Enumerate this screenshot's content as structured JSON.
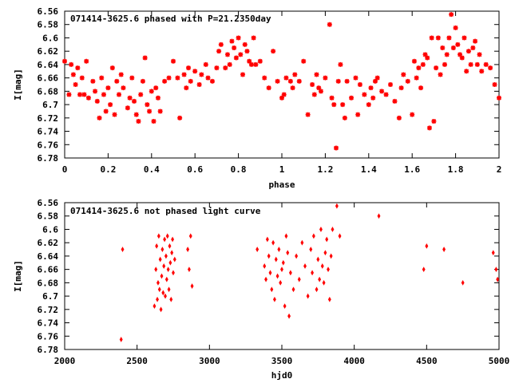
{
  "chart_data": [
    {
      "type": "scatter",
      "title": "071414-3625.6 phased with P=21.2350day",
      "xlabel": "phase",
      "ylabel": "I[mag]",
      "xlim": [
        0,
        2
      ],
      "ylim": [
        6.56,
        6.78
      ],
      "y_inverted": true,
      "xticks": [
        0,
        0.2,
        0.4,
        0.6,
        0.8,
        1,
        1.2,
        1.4,
        1.6,
        1.8,
        2
      ],
      "xtick_labels": [
        "0",
        "0.2",
        "0.4",
        "0.6",
        "0.8",
        "1",
        "1.2",
        "1.4",
        "1.6",
        "1.8",
        "2"
      ],
      "yticks": [
        6.56,
        6.58,
        6.6,
        6.62,
        6.64,
        6.66,
        6.68,
        6.7,
        6.72,
        6.74,
        6.76,
        6.78
      ],
      "ytick_labels": [
        "6.56",
        "6.58",
        "6.6",
        "6.62",
        "6.64",
        "6.66",
        "6.68",
        "6.7",
        "6.72",
        "6.74",
        "6.76",
        "6.78"
      ],
      "marker": "star",
      "color": "#ff0000",
      "series": [
        {
          "x": [
            0.0,
            0.02,
            0.03,
            0.04,
            0.05,
            0.06,
            0.07,
            0.08,
            0.09,
            0.1,
            0.11,
            0.13,
            0.14,
            0.15,
            0.16,
            0.17,
            0.18,
            0.19,
            0.2,
            0.21,
            0.22,
            0.23,
            0.24,
            0.25,
            0.26,
            0.27,
            0.29,
            0.3,
            0.31,
            0.32,
            0.33,
            0.34,
            0.35,
            0.36,
            0.37,
            0.38,
            0.39,
            0.4,
            0.41,
            0.42,
            0.43,
            0.44,
            0.46,
            0.48,
            0.5,
            0.52,
            0.53,
            0.55,
            0.56,
            0.57,
            0.58,
            0.6,
            0.62,
            0.63,
            0.65,
            0.66,
            0.68,
            0.7,
            0.71,
            0.72,
            0.74,
            0.75,
            0.76,
            0.77,
            0.78,
            0.79,
            0.8,
            0.81,
            0.82,
            0.83,
            0.84,
            0.85,
            0.86,
            0.87,
            0.88,
            0.9,
            0.92,
            0.94,
            0.96,
            0.98,
            1.0,
            1.01,
            1.02,
            1.04,
            1.05,
            1.06,
            1.08,
            1.1,
            1.12,
            1.14,
            1.15,
            1.16,
            1.17,
            1.18,
            1.2,
            1.22,
            1.23,
            1.24,
            1.25,
            1.26,
            1.27,
            1.28,
            1.29,
            1.3,
            1.32,
            1.34,
            1.35,
            1.36,
            1.38,
            1.4,
            1.41,
            1.42,
            1.43,
            1.44,
            1.46,
            1.48,
            1.5,
            1.52,
            1.54,
            1.55,
            1.56,
            1.58,
            1.6,
            1.61,
            1.62,
            1.63,
            1.64,
            1.65,
            1.66,
            1.67,
            1.68,
            1.69,
            1.7,
            1.71,
            1.72,
            1.73,
            1.74,
            1.75,
            1.76,
            1.77,
            1.78,
            1.79,
            1.8,
            1.81,
            1.82,
            1.83,
            1.84,
            1.85,
            1.86,
            1.87,
            1.88,
            1.89,
            1.9,
            1.91,
            1.92,
            1.94,
            1.96,
            1.98,
            2.0
          ],
          "y": [
            6.635,
            6.685,
            6.64,
            6.655,
            6.67,
            6.645,
            6.685,
            6.66,
            6.685,
            6.635,
            6.69,
            6.665,
            6.68,
            6.695,
            6.72,
            6.66,
            6.685,
            6.71,
            6.675,
            6.7,
            6.645,
            6.715,
            6.665,
            6.685,
            6.655,
            6.675,
            6.705,
            6.69,
            6.66,
            6.695,
            6.715,
            6.725,
            6.685,
            6.665,
            6.63,
            6.7,
            6.71,
            6.68,
            6.725,
            6.675,
            6.69,
            6.71,
            6.665,
            6.66,
            6.635,
            6.66,
            6.72,
            6.655,
            6.675,
            6.645,
            6.665,
            6.65,
            6.67,
            6.655,
            6.64,
            6.66,
            6.665,
            6.645,
            6.62,
            6.61,
            6.645,
            6.625,
            6.64,
            6.605,
            6.615,
            6.63,
            6.6,
            6.625,
            6.655,
            6.61,
            6.62,
            6.635,
            6.64,
            6.6,
            6.64,
            6.635,
            6.66,
            6.675,
            6.62,
            6.665,
            6.69,
            6.685,
            6.66,
            6.665,
            6.675,
            6.655,
            6.665,
            6.635,
            6.715,
            6.67,
            6.685,
            6.655,
            6.675,
            6.68,
            6.66,
            6.58,
            6.69,
            6.7,
            6.765,
            6.665,
            6.64,
            6.7,
            6.72,
            6.665,
            6.69,
            6.66,
            6.715,
            6.67,
            6.685,
            6.7,
            6.675,
            6.69,
            6.665,
            6.66,
            6.68,
            6.685,
            6.67,
            6.695,
            6.72,
            6.675,
            6.655,
            6.665,
            6.715,
            6.635,
            6.66,
            6.645,
            6.675,
            6.64,
            6.625,
            6.63,
            6.735,
            6.6,
            6.725,
            6.645,
            6.6,
            6.655,
            6.615,
            6.64,
            6.625,
            6.6,
            6.565,
            6.615,
            6.585,
            6.61,
            6.625,
            6.63,
            6.6,
            6.65,
            6.62,
            6.64,
            6.615,
            6.605,
            6.64,
            6.625,
            6.65,
            6.64,
            6.645,
            6.67,
            6.69
          ]
        }
      ]
    },
    {
      "type": "scatter",
      "title": "071414-3625.6 not phased light curve",
      "xlabel": "hjd0",
      "ylabel": "I[mag]",
      "xlim": [
        2000,
        5000
      ],
      "ylim": [
        6.56,
        6.78
      ],
      "y_inverted": true,
      "xticks": [
        2000,
        2500,
        3000,
        3500,
        4000,
        4500,
        5000
      ],
      "xtick_labels": [
        "2000",
        "2500",
        "3000",
        "3500",
        "4000",
        "4500",
        "5000"
      ],
      "yticks": [
        6.56,
        6.58,
        6.6,
        6.62,
        6.64,
        6.66,
        6.68,
        6.7,
        6.72,
        6.74,
        6.76,
        6.78
      ],
      "ytick_labels": [
        "6.56",
        "6.58",
        "6.6",
        "6.62",
        "6.64",
        "6.66",
        "6.68",
        "6.7",
        "6.72",
        "6.74",
        "6.76",
        "6.78"
      ],
      "marker": "diamond",
      "color": "#ff0000",
      "series": [
        {
          "x": [
            2390,
            2400,
            2620,
            2630,
            2635,
            2640,
            2645,
            2650,
            2655,
            2660,
            2665,
            2670,
            2675,
            2680,
            2685,
            2690,
            2695,
            2700,
            2705,
            2710,
            2715,
            2720,
            2725,
            2730,
            2735,
            2740,
            2745,
            2750,
            2760,
            2850,
            2860,
            2870,
            2880,
            3330,
            3380,
            3390,
            3400,
            3410,
            3420,
            3430,
            3440,
            3450,
            3460,
            3470,
            3480,
            3490,
            3500,
            3510,
            3520,
            3530,
            3540,
            3550,
            3560,
            3580,
            3600,
            3620,
            3640,
            3660,
            3680,
            3700,
            3710,
            3720,
            3740,
            3750,
            3760,
            3770,
            3780,
            3790,
            3800,
            3810,
            3820,
            3830,
            3840,
            3850,
            3880,
            3900,
            4170,
            4480,
            4500,
            4620,
            4750,
            4960,
            4980,
            4990
          ],
          "y": [
            6.765,
            6.63,
            6.715,
            6.66,
            6.625,
            6.705,
            6.68,
            6.61,
            6.69,
            6.645,
            6.72,
            6.67,
            6.63,
            6.695,
            6.655,
            6.615,
            6.7,
            6.64,
            6.675,
            6.61,
            6.66,
            6.69,
            6.625,
            6.65,
            6.705,
            6.635,
            6.615,
            6.665,
            6.645,
            6.63,
            6.66,
            6.61,
            6.685,
            6.63,
            6.655,
            6.675,
            6.615,
            6.64,
            6.665,
            6.69,
            6.62,
            6.705,
            6.645,
            6.67,
            6.63,
            6.68,
            6.66,
            6.65,
            6.715,
            6.61,
            6.635,
            6.73,
            6.665,
            6.69,
            6.64,
            6.675,
            6.62,
            6.655,
            6.7,
            6.63,
            6.665,
            6.61,
            6.69,
            6.645,
            6.675,
            6.6,
            6.655,
            6.68,
            6.635,
            6.615,
            6.66,
            6.705,
            6.64,
            6.6,
            6.565,
            6.61,
            6.58,
            6.66,
            6.625,
            6.63,
            6.68,
            6.635,
            6.66,
            6.675
          ]
        }
      ]
    }
  ]
}
